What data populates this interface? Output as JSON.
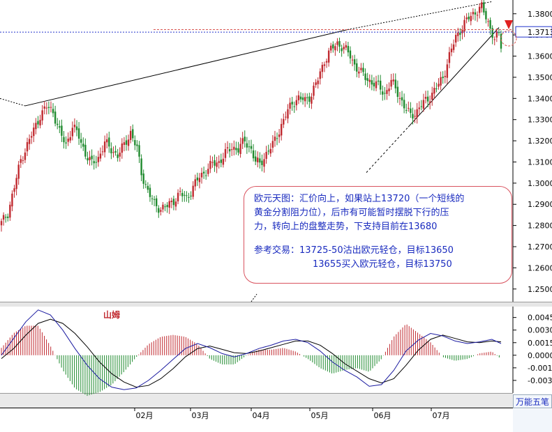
{
  "chart_data": [
    {
      "type": "candlestick",
      "title": "",
      "y_axis_ticks": [
        "1.3800",
        "1.3700",
        "1.3600",
        "1.3500",
        "1.3400",
        "1.3300",
        "1.3200",
        "1.3100",
        "1.3000",
        "1.2900",
        "1.2800",
        "1.2700",
        "1.2600",
        "1.2500"
      ],
      "ylim": [
        1.244,
        1.3865
      ],
      "current_price_label": "1.3713",
      "current_price": 1.3713,
      "resistance_level": 1.3725,
      "x_month_labels": [
        "02月",
        "03月",
        "04月",
        "05月",
        "06月",
        "07月"
      ],
      "colors": {
        "up": "#c0292f",
        "down": "#1f8a2e",
        "price_line": "#2233cc",
        "resistance_line": "#d9534f"
      },
      "close_path": [
        [
          0,
          1.281
        ],
        [
          3,
          1.286
        ],
        [
          6,
          1.298
        ],
        [
          9,
          1.311
        ],
        [
          12,
          1.318
        ],
        [
          15,
          1.325
        ],
        [
          18,
          1.332
        ],
        [
          21,
          1.336
        ],
        [
          24,
          1.334
        ],
        [
          27,
          1.324
        ],
        [
          30,
          1.318
        ],
        [
          33,
          1.327
        ],
        [
          36,
          1.322
        ],
        [
          39,
          1.314
        ],
        [
          42,
          1.309
        ],
        [
          45,
          1.312
        ],
        [
          48,
          1.319
        ],
        [
          51,
          1.316
        ],
        [
          54,
          1.313
        ],
        [
          57,
          1.318
        ],
        [
          60,
          1.324
        ],
        [
          63,
          1.316
        ],
        [
          65,
          1.305
        ],
        [
          68,
          1.296
        ],
        [
          71,
          1.29
        ],
        [
          74,
          1.288
        ],
        [
          77,
          1.289
        ],
        [
          80,
          1.292
        ],
        [
          83,
          1.295
        ],
        [
          86,
          1.293
        ],
        [
          89,
          1.298
        ],
        [
          92,
          1.303
        ],
        [
          95,
          1.306
        ],
        [
          98,
          1.309
        ],
        [
          101,
          1.31
        ],
        [
          104,
          1.314
        ],
        [
          107,
          1.317
        ],
        [
          110,
          1.316
        ],
        [
          113,
          1.32
        ],
        [
          116,
          1.316
        ],
        [
          118,
          1.31
        ],
        [
          120,
          1.309
        ],
        [
          123,
          1.314
        ],
        [
          126,
          1.318
        ],
        [
          129,
          1.325
        ],
        [
          132,
          1.332
        ],
        [
          135,
          1.338
        ],
        [
          138,
          1.34
        ],
        [
          141,
          1.339
        ],
        [
          144,
          1.342
        ],
        [
          147,
          1.349
        ],
        [
          150,
          1.358
        ],
        [
          153,
          1.363
        ],
        [
          156,
          1.366
        ],
        [
          159,
          1.364
        ],
        [
          162,
          1.36
        ],
        [
          164,
          1.356
        ],
        [
          167,
          1.352
        ],
        [
          170,
          1.349
        ],
        [
          173,
          1.347
        ],
        [
          176,
          1.345
        ],
        [
          178,
          1.342
        ],
        [
          181,
          1.348
        ],
        [
          184,
          1.343
        ],
        [
          187,
          1.336
        ],
        [
          190,
          1.332
        ],
        [
          193,
          1.334
        ],
        [
          196,
          1.338
        ],
        [
          199,
          1.341
        ],
        [
          202,
          1.345
        ],
        [
          205,
          1.35
        ],
        [
          208,
          1.36
        ],
        [
          211,
          1.369
        ],
        [
          214,
          1.374
        ],
        [
          217,
          1.378
        ],
        [
          220,
          1.381
        ],
        [
          223,
          1.383
        ],
        [
          226,
          1.376
        ],
        [
          229,
          1.368
        ],
        [
          231,
          1.37
        ],
        [
          232,
          1.365
        ]
      ],
      "macd": {
        "y_axis_ticks": [
          "0.0045",
          "0.0030",
          "0.0015",
          "0.0000",
          "-0.0015",
          "-0.0030"
        ],
        "ylim": [
          -0.0045,
          0.0058
        ],
        "label": "山姆",
        "dif_colors": {
          "dif": "#1a1aa0",
          "dea": "#000000",
          "hist_pos": "#c0292f",
          "hist_neg": "#1f8a2e"
        },
        "dif_path": [
          [
            0,
            0.0
          ],
          [
            4,
            0.002
          ],
          [
            8,
            0.004
          ],
          [
            12,
            0.0054
          ],
          [
            16,
            0.0048
          ],
          [
            20,
            0.003
          ],
          [
            24,
            0.0008
          ],
          [
            28,
            -0.0012
          ],
          [
            32,
            -0.0028
          ],
          [
            36,
            -0.0038
          ],
          [
            40,
            -0.0041
          ],
          [
            44,
            -0.0039
          ],
          [
            48,
            -0.003
          ],
          [
            52,
            -0.0018
          ],
          [
            56,
            -0.0005
          ],
          [
            60,
            0.0008
          ],
          [
            64,
            0.0014
          ],
          [
            68,
            0.0009
          ],
          [
            72,
            0.0002
          ],
          [
            76,
            -0.0002
          ],
          [
            80,
            0.0002
          ],
          [
            84,
            0.0008
          ],
          [
            88,
            0.0012
          ],
          [
            92,
            0.0017
          ],
          [
            96,
            0.0019
          ],
          [
            100,
            0.0015
          ],
          [
            104,
            0.0005
          ],
          [
            108,
            -0.0008
          ],
          [
            112,
            -0.0018
          ],
          [
            116,
            -0.0026
          ],
          [
            120,
            -0.0037
          ],
          [
            124,
            -0.0035
          ],
          [
            128,
            -0.0018
          ],
          [
            132,
            0.0005
          ],
          [
            136,
            0.0018
          ],
          [
            140,
            0.0026
          ],
          [
            144,
            0.0023
          ],
          [
            148,
            0.0017
          ],
          [
            152,
            0.0014
          ],
          [
            156,
            0.0016
          ],
          [
            160,
            0.0019
          ],
          [
            163,
            0.0014
          ]
        ],
        "dea_path": [
          [
            0,
            -0.0004
          ],
          [
            4,
            0.0008
          ],
          [
            8,
            0.0024
          ],
          [
            12,
            0.0038
          ],
          [
            16,
            0.0043
          ],
          [
            20,
            0.0038
          ],
          [
            24,
            0.0026
          ],
          [
            28,
            0.001
          ],
          [
            32,
            -0.0008
          ],
          [
            36,
            -0.0022
          ],
          [
            40,
            -0.0032
          ],
          [
            44,
            -0.0038
          ],
          [
            48,
            -0.0036
          ],
          [
            52,
            -0.0028
          ],
          [
            56,
            -0.0016
          ],
          [
            60,
            -0.0002
          ],
          [
            64,
            0.0008
          ],
          [
            68,
            0.0011
          ],
          [
            72,
            0.0007
          ],
          [
            76,
            0.0003
          ],
          [
            80,
            0.0002
          ],
          [
            84,
            0.0005
          ],
          [
            88,
            0.0009
          ],
          [
            92,
            0.0013
          ],
          [
            96,
            0.0017
          ],
          [
            100,
            0.0017
          ],
          [
            104,
            0.0012
          ],
          [
            108,
            0.0002
          ],
          [
            112,
            -0.001
          ],
          [
            116,
            -0.0019
          ],
          [
            120,
            -0.0028
          ],
          [
            124,
            -0.0033
          ],
          [
            128,
            -0.0028
          ],
          [
            132,
            -0.0012
          ],
          [
            136,
            0.0006
          ],
          [
            140,
            0.0019
          ],
          [
            144,
            0.0024
          ],
          [
            148,
            0.002
          ],
          [
            152,
            0.0016
          ],
          [
            156,
            0.0015
          ],
          [
            160,
            0.0017
          ],
          [
            163,
            0.0016
          ]
        ]
      }
    }
  ],
  "annotation": {
    "line1": "欧元天图：汇价向上，如果站上13720（一个短线的",
    "line2": "黄金分割阻力位），后市有可能暂时摆脱下行的压",
    "line3": "力，转向上的盘整走势，下支持目前在13680",
    "trade_line1": "参考交易：13725-50沽出欧元轻仓，目标13650",
    "trade_line2": "13655买入欧元轻仓，目标13750"
  },
  "toolbar": {
    "wn_label": "万能五笔"
  }
}
